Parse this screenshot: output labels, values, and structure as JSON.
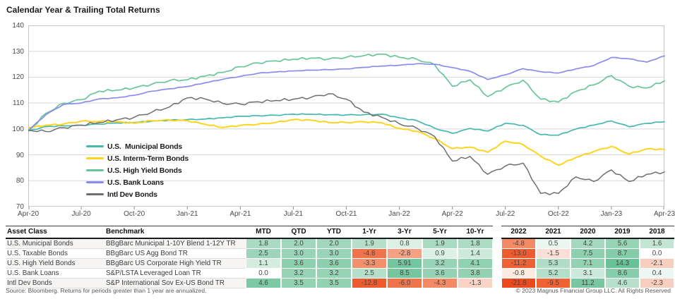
{
  "title": "Calendar Year & Trailing Total Returns",
  "chart_data": {
    "type": "line",
    "x_tick_labels": [
      "Apr-20",
      "Jul-20",
      "Oct-20",
      "Jan-21",
      "Apr-21",
      "Jul-21",
      "Oct-21",
      "Jan-22",
      "Apr-22",
      "Jul-22",
      "Oct-22",
      "Jan-23",
      "Apr-23"
    ],
    "y_ticks": [
      70,
      80,
      90,
      100,
      110,
      120,
      130,
      140
    ],
    "ylim": [
      70,
      140
    ],
    "grid": "horizontal",
    "legend_position": "inside-left",
    "series": [
      {
        "name": "U.S.  Municipal Bonds",
        "color": "#45b9b0",
        "values": [
          99.2,
          100.9,
          101.2,
          101.4,
          101.9,
          102.3,
          102.5,
          103.0,
          103.4,
          103.6,
          103.8,
          104.3,
          104.9,
          105.1,
          105.3,
          105.7,
          105.7,
          105.5,
          105.4,
          105.5,
          105.7,
          104.3,
          103.2,
          100.3,
          98.3,
          100.2,
          99.2,
          102.2,
          101.4,
          97.8,
          97.6,
          100.0,
          101.5,
          103.1,
          100.9,
          102.2,
          102.8
        ]
      },
      {
        "name": "U.S. Interm-Term Bonds",
        "color": "#ffd41f",
        "values": [
          100.5,
          101.4,
          101.9,
          103.0,
          102.9,
          102.8,
          102.2,
          103.2,
          103.4,
          103.2,
          101.8,
          100.6,
          101.4,
          101.8,
          102.5,
          103.6,
          103.4,
          102.5,
          102.5,
          102.8,
          102.4,
          100.2,
          99.1,
          96.3,
          92.4,
          93.0,
          91.0,
          95.3,
          94.0,
          89.5,
          86.0,
          89.0,
          91.3,
          93.3,
          90.3,
          92.3,
          92.1
        ]
      },
      {
        "name": "U.S. High Yield Bonds",
        "color": "#69c69a",
        "values": [
          99.0,
          106.0,
          109.9,
          111.3,
          114.6,
          115.0,
          115.9,
          117.3,
          118.7,
          119.0,
          120.4,
          121.8,
          124.0,
          125.5,
          126.3,
          126.9,
          127.4,
          127.0,
          127.7,
          128.3,
          128.9,
          127.7,
          126.9,
          124.8,
          116.5,
          119.0,
          112.5,
          116.0,
          118.8,
          111.5,
          110.4,
          114.5,
          117.0,
          120.6,
          116.5,
          115.8,
          118.6
        ]
      },
      {
        "name": "U.S. Bank Loans",
        "color": "#8c8aed",
        "values": [
          99.5,
          105.5,
          109.5,
          110.0,
          111.6,
          112.0,
          113.0,
          114.6,
          115.5,
          116.4,
          117.8,
          119.2,
          120.3,
          121.5,
          122.0,
          122.4,
          122.7,
          122.9,
          123.2,
          123.8,
          124.3,
          124.6,
          125.2,
          125.0,
          123.7,
          122.3,
          119.1,
          120.9,
          123.3,
          122.1,
          121.6,
          123.2,
          124.5,
          127.6,
          127.1,
          125.8,
          128.2
        ]
      },
      {
        "name": "Intl Dev Bonds",
        "color": "#6f6f6f",
        "values": [
          99.5,
          99.0,
          100.5,
          101.5,
          102.5,
          103.5,
          104.5,
          106.5,
          108.5,
          112.0,
          111.6,
          109.9,
          109.6,
          110.5,
          111.0,
          111.5,
          112.2,
          113.6,
          111.5,
          106.5,
          104.5,
          102.0,
          100.3,
          97.1,
          87.6,
          89.4,
          82.5,
          85.7,
          86.8,
          75.1,
          75.1,
          81.5,
          79.7,
          84.2,
          79.7,
          82.5,
          83.4
        ]
      }
    ]
  },
  "table": {
    "headers": [
      "Asset Class",
      "Benchmark",
      "MTD",
      "QTD",
      "YTD",
      "1-Yr",
      "3-Yr",
      "5-Yr",
      "10-Yr",
      "2022",
      "2021",
      "2020",
      "2019",
      "2018"
    ],
    "rows": [
      {
        "asset_class": "U.S. Municipal Bonds",
        "benchmark": "BBgBarc Municipal 1-10Y Blend 1-12Y TR",
        "values": [
          "1.8",
          "2.0",
          "2.0",
          "1.9",
          "0.8",
          "1.9",
          "1.8",
          "-4.8",
          "0.5",
          "4.2",
          "5.6",
          "1.6"
        ],
        "colors": [
          "#abdac2",
          "#a3d7bd",
          "#a3d7bd",
          "#b5dfc9",
          "#dcf0e6",
          "#abdac2",
          "#aedbc4",
          "#f28a65",
          "#ecf6f1",
          "#a5d8bf",
          "#97d3b5",
          "#c3e5d3"
        ]
      },
      {
        "asset_class": "U.S. Taxable Bonds",
        "benchmark": "BBgBarc US Agg Bond TR",
        "values": [
          "2.5",
          "3.0",
          "3.0",
          "-4.8",
          "-2.8",
          "0.9",
          "1.4",
          "-13.0",
          "-1.5",
          "7.5",
          "8.7",
          "0.0"
        ],
        "colors": [
          "#9cd5b8",
          "#99d4b6",
          "#99d4b6",
          "#f0744b",
          "#f5a183",
          "#dcf0e6",
          "#cde9db",
          "#ed5c2e",
          "#fbdfd6",
          "#8ed0ae",
          "#85cca8",
          "#ffffff"
        ]
      },
      {
        "asset_class": "U.S. High Yield Bonds",
        "benchmark": "BBgBarc US Corporate High Yield TR",
        "values": [
          "1.1",
          "3.6",
          "3.6",
          "-3.3",
          "5.91",
          "3.2",
          "4.1",
          "-11.2",
          "5.3",
          "7.1",
          "14.3",
          "-2.1"
        ],
        "colors": [
          "#d3ecdf",
          "#8ed0ae",
          "#8ed0ae",
          "#f2906c",
          "#72c59c",
          "#97d3b5",
          "#90d1b0",
          "#ed6134",
          "#b1ddc6",
          "#92d2b1",
          "#68c295",
          "#f8cebf"
        ]
      },
      {
        "asset_class": "U.S. Bank Loans",
        "benchmark": "S&P/LSTA Leveraged Loan TR",
        "values": [
          "0.0",
          "3.2",
          "3.2",
          "2.5",
          "8.5",
          "3.6",
          "3.8",
          "-0.8",
          "5.2",
          "3.1",
          "8.6",
          "0.4"
        ],
        "colors": [
          "#ffffff",
          "#97d3b5",
          "#97d3b5",
          "#b6dfc9",
          "#75c69e",
          "#94d2b3",
          "#92d2b1",
          "#fcebe3",
          "#b3dec7",
          "#cde9db",
          "#88cdaa",
          "#edf7f3"
        ]
      },
      {
        "asset_class": "Intl Dev Bonds",
        "benchmark": "S&P International Sov Ex-US Bond TR",
        "values": [
          "4.6",
          "3.5",
          "3.5",
          "-12.8",
          "-6.0",
          "-4.3",
          "-1.3",
          "-21.8",
          "-9.5",
          "11.2",
          "4.6",
          "-2.3"
        ],
        "colors": [
          "#7dc9a3",
          "#92d2b1",
          "#92d2b1",
          "#ed5c2e",
          "#f0744b",
          "#f28a65",
          "#f9d3c5",
          "#ea4a1d",
          "#ee6234",
          "#78c7a0",
          "#b8e0cb",
          "#f8cebf"
        ]
      }
    ]
  },
  "footer": {
    "source": "Source: Bloomberg. Returns for periods greater than 1 year are annualized.",
    "copyright": "© 2023 Magnus Financial Group LLC. All Rights Reserved"
  }
}
